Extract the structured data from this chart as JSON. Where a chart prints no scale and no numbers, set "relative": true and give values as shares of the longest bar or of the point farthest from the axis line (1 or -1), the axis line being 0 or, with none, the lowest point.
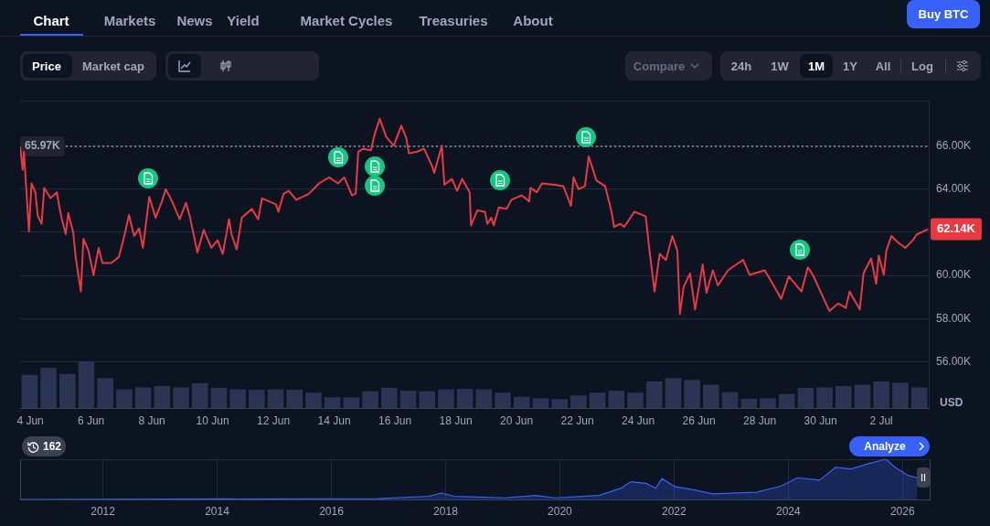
{
  "chart_data": [
    {
      "type": "line",
      "color": "#ea3943",
      "ylabel": "USD",
      "grid": "y",
      "xlim": [
        "2026-06-03T16:00",
        "2026-07-03T13:30"
      ],
      "xticks": [
        {
          "value": "2026-06-04",
          "label": "4 Jun"
        },
        {
          "value": "2026-06-06",
          "label": "6 Jun"
        },
        {
          "value": "2026-06-08",
          "label": "8 Jun"
        },
        {
          "value": "2026-06-10",
          "label": "10 Jun"
        },
        {
          "value": "2026-06-12",
          "label": "12 Jun"
        },
        {
          "value": "2026-06-14",
          "label": "14 Jun"
        },
        {
          "value": "2026-06-16",
          "label": "16 Jun"
        },
        {
          "value": "2026-06-18",
          "label": "18 Jun"
        },
        {
          "value": "2026-06-20",
          "label": "20 Jun"
        },
        {
          "value": "2026-06-22",
          "label": "22 Jun"
        },
        {
          "value": "2026-06-24",
          "label": "24 Jun"
        },
        {
          "value": "2026-06-26",
          "label": "26 Jun"
        },
        {
          "value": "2026-06-28",
          "label": "28 Jun"
        },
        {
          "value": "2026-06-30",
          "label": "30 Jun"
        },
        {
          "value": "2026-07-02",
          "label": "2 Jul"
        }
      ],
      "ylim": [
        53830,
        68080
      ],
      "yticks": [
        {
          "value": 56000,
          "label": "56.00K"
        },
        {
          "value": 58000,
          "label": "58.00K"
        },
        {
          "value": 60000,
          "label": "60.00K"
        },
        {
          "value": 62000,
          "label": null
        },
        {
          "value": 64000,
          "label": "64.00K"
        },
        {
          "value": 66000,
          "label": "66.00K"
        }
      ],
      "x": [
        "2026-06-03T16:00",
        "2026-06-03T18:00",
        "2026-06-03T19:00",
        "2026-06-03T23:00",
        "2026-06-04T01:00",
        "2026-06-04T04:00",
        "2026-06-04T06:00",
        "2026-06-04T09:00",
        "2026-06-04T11:00",
        "2026-06-04T16:00",
        "2026-06-04T21:00",
        "2026-06-04T23:00",
        "2026-06-05T01:00",
        "2026-06-05T04:00",
        "2026-06-05T06:00",
        "2026-06-05T10:00",
        "2026-06-05T12:00",
        "2026-06-05T16:00",
        "2026-06-05T18:00",
        "2026-06-05T22:00",
        "2026-06-06T02:00",
        "2026-06-06T06:00",
        "2026-06-06T09:00",
        "2026-06-06T16:00",
        "2026-06-06T22:00",
        "2026-06-07T02:00",
        "2026-06-07T06:00",
        "2026-06-07T10:00",
        "2026-06-07T14:00",
        "2026-06-07T17:00",
        "2026-06-07T22:00",
        "2026-06-08T03:00",
        "2026-06-08T08:00",
        "2026-06-08T11:00",
        "2026-06-08T16:00",
        "2026-06-08T22:00",
        "2026-06-09T03:00",
        "2026-06-09T06:00",
        "2026-06-09T12:00",
        "2026-06-09T17:00",
        "2026-06-09T23:00",
        "2026-06-10T04:00",
        "2026-06-10T08:00",
        "2026-06-10T13:00",
        "2026-06-10T15:00",
        "2026-06-10T19:00",
        "2026-06-10T23:00",
        "2026-06-11T07:00",
        "2026-06-11T12:00",
        "2026-06-11T15:00",
        "2026-06-12T02:00",
        "2026-06-12T04:00",
        "2026-06-12T08:00",
        "2026-06-12T12:00",
        "2026-06-12T18:00",
        "2026-06-13T04:00",
        "2026-06-13T12:00",
        "2026-06-13T20:00",
        "2026-06-14T03:00",
        "2026-06-14T08:00",
        "2026-06-14T14:00",
        "2026-06-14T17:00",
        "2026-06-14T19:00",
        "2026-06-14T23:00",
        "2026-06-15T05:00",
        "2026-06-15T08:00",
        "2026-06-15T12:00",
        "2026-06-15T17:00",
        "2026-06-15T23:00",
        "2026-06-16T05:00",
        "2026-06-16T09:00",
        "2026-06-16T11:00",
        "2026-06-16T17:00",
        "2026-06-16T23:00",
        "2026-06-17T05:00",
        "2026-06-17T07:00",
        "2026-06-17T13:00",
        "2026-06-17T15:00",
        "2026-06-17T21:00",
        "2026-06-18T01:00",
        "2026-06-18T05:00",
        "2026-06-18T11:00",
        "2026-06-18T12:00",
        "2026-06-18T17:00",
        "2026-06-18T23:00",
        "2026-06-19T01:00",
        "2026-06-19T04:00",
        "2026-06-19T06:00",
        "2026-06-19T10:00",
        "2026-06-19T16:00",
        "2026-06-19T20:00",
        "2026-06-20T04:00",
        "2026-06-20T10:00",
        "2026-06-20T11:00",
        "2026-06-20T16:00",
        "2026-06-20T20:00",
        "2026-06-21T06:00",
        "2026-06-21T13:00",
        "2026-06-21T19:00",
        "2026-06-21T21:00",
        "2026-06-22T01:00",
        "2026-06-22T06:00",
        "2026-06-22T09:00",
        "2026-06-22T15:00",
        "2026-06-22T22:00",
        "2026-06-23T03:00",
        "2026-06-23T05:00",
        "2026-06-23T10:00",
        "2026-06-23T13:00",
        "2026-06-23T21:00",
        "2026-06-24T06:00",
        "2026-06-24T09:00",
        "2026-06-24T13:00",
        "2026-06-24T17:00",
        "2026-06-24T22:00",
        "2026-06-25T03:00",
        "2026-06-25T07:00",
        "2026-06-25T09:00",
        "2026-06-25T12:00",
        "2026-06-25T17:00",
        "2026-06-25T21:00",
        "2026-06-26T03:00",
        "2026-06-26T06:00",
        "2026-06-26T11:00",
        "2026-06-26T15:00",
        "2026-06-26T23:00",
        "2026-06-27T04:00",
        "2026-06-27T11:00",
        "2026-06-27T16:00",
        "2026-06-28T04:00",
        "2026-06-28T11:00",
        "2026-06-28T17:00",
        "2026-06-28T23:00",
        "2026-06-29T09:00",
        "2026-06-29T14:00",
        "2026-06-29T18:00",
        "2026-06-30T07:00",
        "2026-06-30T14:00",
        "2026-06-30T20:00",
        "2026-06-30T23:00",
        "2026-07-01T07:00",
        "2026-07-01T10:00",
        "2026-07-01T16:00",
        "2026-07-01T20:00",
        "2026-07-01T22:00",
        "2026-07-02T02:00",
        "2026-07-02T04:00",
        "2026-07-02T08:00",
        "2026-07-02T14:00",
        "2026-07-02T19:00",
        "2026-07-03T01:00",
        "2026-07-03T04:00",
        "2026-07-03T13:00"
      ],
      "values": [
        65970,
        64890,
        65720,
        62040,
        64260,
        63850,
        62750,
        62390,
        64050,
        63580,
        63850,
        63170,
        62600,
        61920,
        62880,
        61970,
        60790,
        59260,
        61700,
        61140,
        60030,
        61280,
        60580,
        60580,
        60860,
        61760,
        62800,
        61830,
        62180,
        61280,
        63640,
        62670,
        63430,
        63990,
        63430,
        62600,
        63360,
        62740,
        61070,
        62110,
        61280,
        61630,
        61000,
        62600,
        61900,
        61210,
        62670,
        63080,
        62600,
        63570,
        63290,
        62950,
        63780,
        63920,
        63500,
        63780,
        64260,
        64540,
        64260,
        64540,
        63710,
        63780,
        65720,
        65860,
        65790,
        66550,
        67250,
        66420,
        66000,
        66930,
        66350,
        65650,
        65720,
        65860,
        65100,
        64750,
        66000,
        64200,
        64470,
        63920,
        64470,
        63850,
        62320,
        63010,
        62950,
        62390,
        62670,
        62320,
        63150,
        63080,
        63500,
        63710,
        63430,
        64050,
        63850,
        64260,
        64200,
        64130,
        63220,
        64540,
        63990,
        64130,
        65510,
        64400,
        64130,
        62950,
        62250,
        62390,
        62250,
        62950,
        62740,
        61140,
        59260,
        61000,
        60720,
        61830,
        61140,
        58220,
        59470,
        60100,
        58430,
        60510,
        59200,
        60240,
        59540,
        60240,
        60450,
        60720,
        60030,
        60240,
        59540,
        58920,
        59960,
        59260,
        60380,
        60030,
        58360,
        58710,
        58500,
        59260,
        58430,
        60100,
        60790,
        59610,
        60930,
        60030,
        61140,
        61830,
        61490,
        61280,
        61630,
        61900,
        62140
      ],
      "ref_lines": [
        {
          "axis": "y",
          "value": 65970,
          "label": "65.97K",
          "line_style": "dotted",
          "color": "#c8ccd6"
        }
      ],
      "annotations": [
        {
          "text": "62.14K",
          "x": "2026-07-03T13:00",
          "y": 62140
        }
      ]
    },
    {
      "type": "bar",
      "relative": true,
      "color": "#2b3452",
      "categories": [
        null,
        null,
        null,
        null,
        null,
        null,
        null,
        null,
        null,
        null,
        null,
        null,
        null,
        null,
        null,
        null,
        null,
        null,
        null,
        null,
        null,
        null,
        null,
        null,
        null,
        null,
        null,
        null,
        null,
        null,
        null,
        null,
        null,
        null,
        null,
        null,
        null,
        null,
        null,
        null,
        null,
        null,
        null,
        null,
        null,
        null,
        null,
        null
      ],
      "values": [
        0.71,
        0.86,
        0.73,
        1,
        0.64,
        0.4,
        0.44,
        0.47,
        0.44,
        0.53,
        0.43,
        0.4,
        0.39,
        0.4,
        0.39,
        0.33,
        0.23,
        0.23,
        0.36,
        0.43,
        0.37,
        0.36,
        0.4,
        0.41,
        0.4,
        0.33,
        0.24,
        0.21,
        0.19,
        0.27,
        0.33,
        0.37,
        0.33,
        0.57,
        0.64,
        0.6,
        0.5,
        0.34,
        0.2,
        0.21,
        0.3,
        0.43,
        0.44,
        0.47,
        0.5,
        0.57,
        0.54,
        0.44
      ]
    },
    {
      "type": "area",
      "relative": true,
      "color": "#3861fb",
      "grid": "x",
      "xlim": [
        2010.55,
        2026.46
      ],
      "xticks": [
        2012,
        2014,
        2016,
        2018,
        2020,
        2022,
        2024,
        2026
      ],
      "x": [
        2010.55,
        2016.82,
        2017.7,
        2017.93,
        2018.15,
        2019.03,
        2019.58,
        2019.91,
        2020.69,
        2021.07,
        2021.24,
        2021.51,
        2021.68,
        2021.79,
        2022.01,
        2022.34,
        2022.67,
        2023.45,
        2023.89,
        2024.16,
        2024.55,
        2024.83,
        2025.1,
        2025.43,
        2025.71,
        2025.87,
        2026.09,
        2026.26
      ],
      "values": [
        0,
        0.02,
        0.08,
        0.16,
        0.08,
        0.04,
        0.1,
        0.04,
        0.1,
        0.28,
        0.44,
        0.4,
        0.28,
        0.52,
        0.32,
        0.24,
        0.14,
        0.18,
        0.34,
        0.54,
        0.48,
        0.8,
        0.76,
        0.9,
        1,
        0.8,
        0.6,
        0.54
      ]
    },
    {
      "type": "other",
      "annotations": [
        "Chart",
        "Markets",
        "News",
        "Yield",
        "Market Cycles",
        "Treasuries",
        "About",
        "Buy BTC",
        "Price",
        "Market cap",
        "Compare",
        "24h",
        "1W",
        "1M",
        "1Y",
        "All",
        "Log",
        "162",
        "Analyze"
      ]
    }
  ]
}
